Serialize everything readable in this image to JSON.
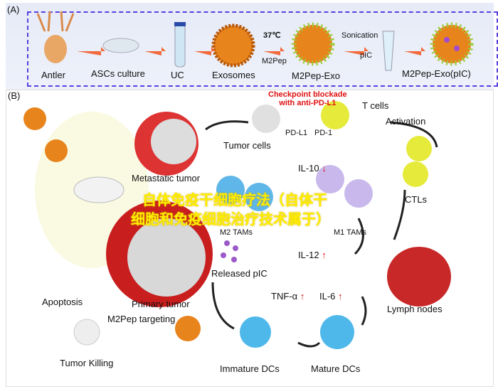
{
  "panel_a": {
    "label": "(A)",
    "steps": [
      "Antler",
      "ASCs culture",
      "UC",
      "Exosomes",
      "M2Pep-Exo",
      "M2Pep-Exo(pIC)"
    ],
    "temp": "37℃",
    "peptide": "M2Pep",
    "sonication": "Sonication",
    "pic": "pIC"
  },
  "panel_b": {
    "label": "(B)",
    "checkpoint": "Checkpoint blockade\nwith anti-PD-L1",
    "t_cells": "T cells",
    "pd_l1": "PD-L1",
    "pd_1": "PD-1",
    "tumor_cells": "Tumor cells",
    "activation": "Activation",
    "metastatic_tumor": "Metastatic tumor",
    "il10": "IL-10",
    "m2_tams": "M2 TAMs",
    "m1_tams": "M1 TAMs",
    "ctls": "CTLs",
    "il12": "IL-12",
    "released_pic": "Released pIC",
    "primary_tumor": "Primary tumor",
    "apoptosis": "Apoptosis",
    "m2pep_targeting": "M2Pep targeting",
    "tnf": "TNF-α",
    "il6": "IL-6",
    "lymph_nodes": "Lymph nodes",
    "tumor_killing": "Tumor Killing",
    "immature_dcs": "Immature DCs",
    "mature_dcs": "Mature DCs"
  },
  "watermark": {
    "line1": "自体免疫干细胞疗法（自体干",
    "line2": "细胞和免疫细胞治疗技术属于）"
  },
  "colors": {
    "arrow": "#f26a3d",
    "dash": "#5a3fe0",
    "up_arrow": "#e01010",
    "down_arrow": "#e01010",
    "exosome": "#e8841c",
    "watermark": "#ffee00"
  }
}
